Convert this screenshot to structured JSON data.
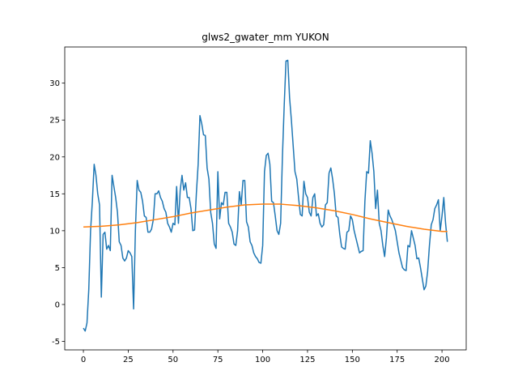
{
  "chart_data": {
    "type": "line",
    "title": "glws2_gwater_mm YUKON",
    "series": [
      {
        "color": "#1f77b4",
        "x": [
          0,
          1,
          2,
          3,
          4,
          5,
          6,
          7,
          8,
          9,
          10,
          11,
          12,
          13,
          14,
          15,
          16,
          17,
          18,
          19,
          20,
          21,
          22,
          23,
          24,
          25,
          26,
          27,
          28,
          29,
          30,
          31,
          32,
          33,
          34,
          35,
          36,
          37,
          38,
          39,
          40,
          41,
          42,
          43,
          44,
          45,
          46,
          47,
          48,
          49,
          50,
          51,
          52,
          53,
          54,
          55,
          56,
          57,
          58,
          59,
          60,
          61,
          62,
          63,
          64,
          65,
          66,
          67,
          68,
          69,
          70,
          71,
          72,
          73,
          74,
          75,
          76,
          77,
          78,
          79,
          80,
          81,
          82,
          83,
          84,
          85,
          86,
          87,
          88,
          89,
          90,
          91,
          92,
          93,
          94,
          95,
          96,
          97,
          98,
          99,
          100,
          101,
          102,
          103,
          104,
          105,
          106,
          107,
          108,
          109,
          110,
          111,
          112,
          113,
          114,
          115,
          116,
          117,
          118,
          119,
          120,
          121,
          122,
          123,
          124,
          125,
          126,
          127,
          128,
          129,
          130,
          131,
          132,
          133,
          134,
          135,
          136,
          137,
          138,
          139,
          140,
          141,
          142,
          143,
          144,
          145,
          146,
          147,
          148,
          149,
          150,
          151,
          152,
          153,
          154,
          155,
          156,
          157,
          158,
          159,
          160,
          161,
          162,
          163,
          164,
          165,
          166,
          167,
          168,
          169,
          170,
          171,
          172,
          173,
          174,
          175,
          176,
          177,
          178,
          179,
          180,
          181,
          182,
          183,
          184,
          185,
          186,
          187,
          188,
          189,
          190,
          191,
          192,
          193,
          194,
          195,
          196,
          197,
          198,
          199,
          200,
          201,
          202,
          203
        ],
        "values": [
          -3.2,
          -3.6,
          -2.5,
          2,
          10,
          14,
          19,
          17.5,
          15,
          13.5,
          1,
          9.5,
          9.8,
          7.5,
          8,
          7.3,
          17.5,
          16,
          14.5,
          12.5,
          8.5,
          8,
          6.3,
          5.9,
          6.3,
          7.3,
          7,
          6.5,
          -0.6,
          10,
          16.8,
          15.5,
          15.2,
          14,
          12,
          11.8,
          9.8,
          9.8,
          10.2,
          11.5,
          15,
          15,
          15.4,
          14.5,
          14,
          13,
          12.5,
          11,
          10.5,
          9.8,
          11,
          10.8,
          16,
          11,
          15.5,
          17.5,
          15.5,
          16.5,
          14.5,
          14.5,
          13,
          10,
          10.1,
          15,
          19,
          25.6,
          24.5,
          23,
          22.9,
          18.5,
          17,
          12.5,
          11,
          8.2,
          7.6,
          18,
          11.6,
          13.8,
          13.5,
          15.2,
          15.2,
          11,
          10.5,
          9.8,
          8.2,
          8,
          10,
          15.3,
          13.5,
          16.8,
          16.8,
          11.2,
          10.5,
          8.5,
          8,
          7,
          6.5,
          6.2,
          5.7,
          5.6,
          8,
          18,
          20.2,
          20.5,
          19,
          14,
          13.8,
          12,
          10,
          9.5,
          11,
          20,
          27,
          33,
          33.1,
          28,
          25,
          21.5,
          18,
          17,
          14.5,
          12.2,
          12,
          16.7,
          15,
          14.5,
          12.5,
          12,
          14.5,
          15,
          12,
          12.3,
          11,
          10.5,
          10.8,
          13.5,
          13.8,
          17.8,
          18.5,
          17,
          15,
          12,
          11.8,
          9.5,
          7.8,
          7.6,
          7.5,
          9.8,
          10,
          12,
          11.5,
          10,
          9,
          8,
          7,
          7.2,
          7.3,
          14,
          18,
          17.8,
          22.2,
          20.5,
          18,
          13,
          15.5,
          11,
          10,
          8,
          6.5,
          9,
          12.8,
          12,
          11.5,
          10.8,
          10,
          8.5,
          7,
          6,
          5,
          4.7,
          4.6,
          8,
          7.8,
          10,
          9,
          8,
          6.2,
          6.3,
          5,
          3.5,
          2,
          2.5,
          4.5,
          8,
          10.8,
          11.5,
          13,
          13.5,
          14.2,
          10,
          12,
          14.5,
          11,
          8.5
        ]
      },
      {
        "color": "#ff7f0e",
        "x": [
          0,
          10,
          20,
          30,
          40,
          50,
          60,
          70,
          80,
          90,
          100,
          110,
          120,
          130,
          140,
          150,
          160,
          170,
          180,
          190,
          200,
          203
        ],
        "values": [
          10.5,
          10.6,
          10.8,
          11.1,
          11.5,
          11.9,
          12.4,
          12.8,
          13.2,
          13.5,
          13.6,
          13.6,
          13.4,
          13.1,
          12.7,
          12.2,
          11.6,
          11.1,
          10.6,
          10.2,
          9.9,
          9.9
        ]
      }
    ],
    "xlim": [
      -10.4,
      213.5
    ],
    "xticks": [
      0,
      25,
      50,
      75,
      100,
      125,
      150,
      175,
      200
    ],
    "ylim": [
      -6.15,
      34.9
    ],
    "yticks": [
      -5,
      0,
      5,
      10,
      15,
      20,
      25,
      30
    ]
  }
}
